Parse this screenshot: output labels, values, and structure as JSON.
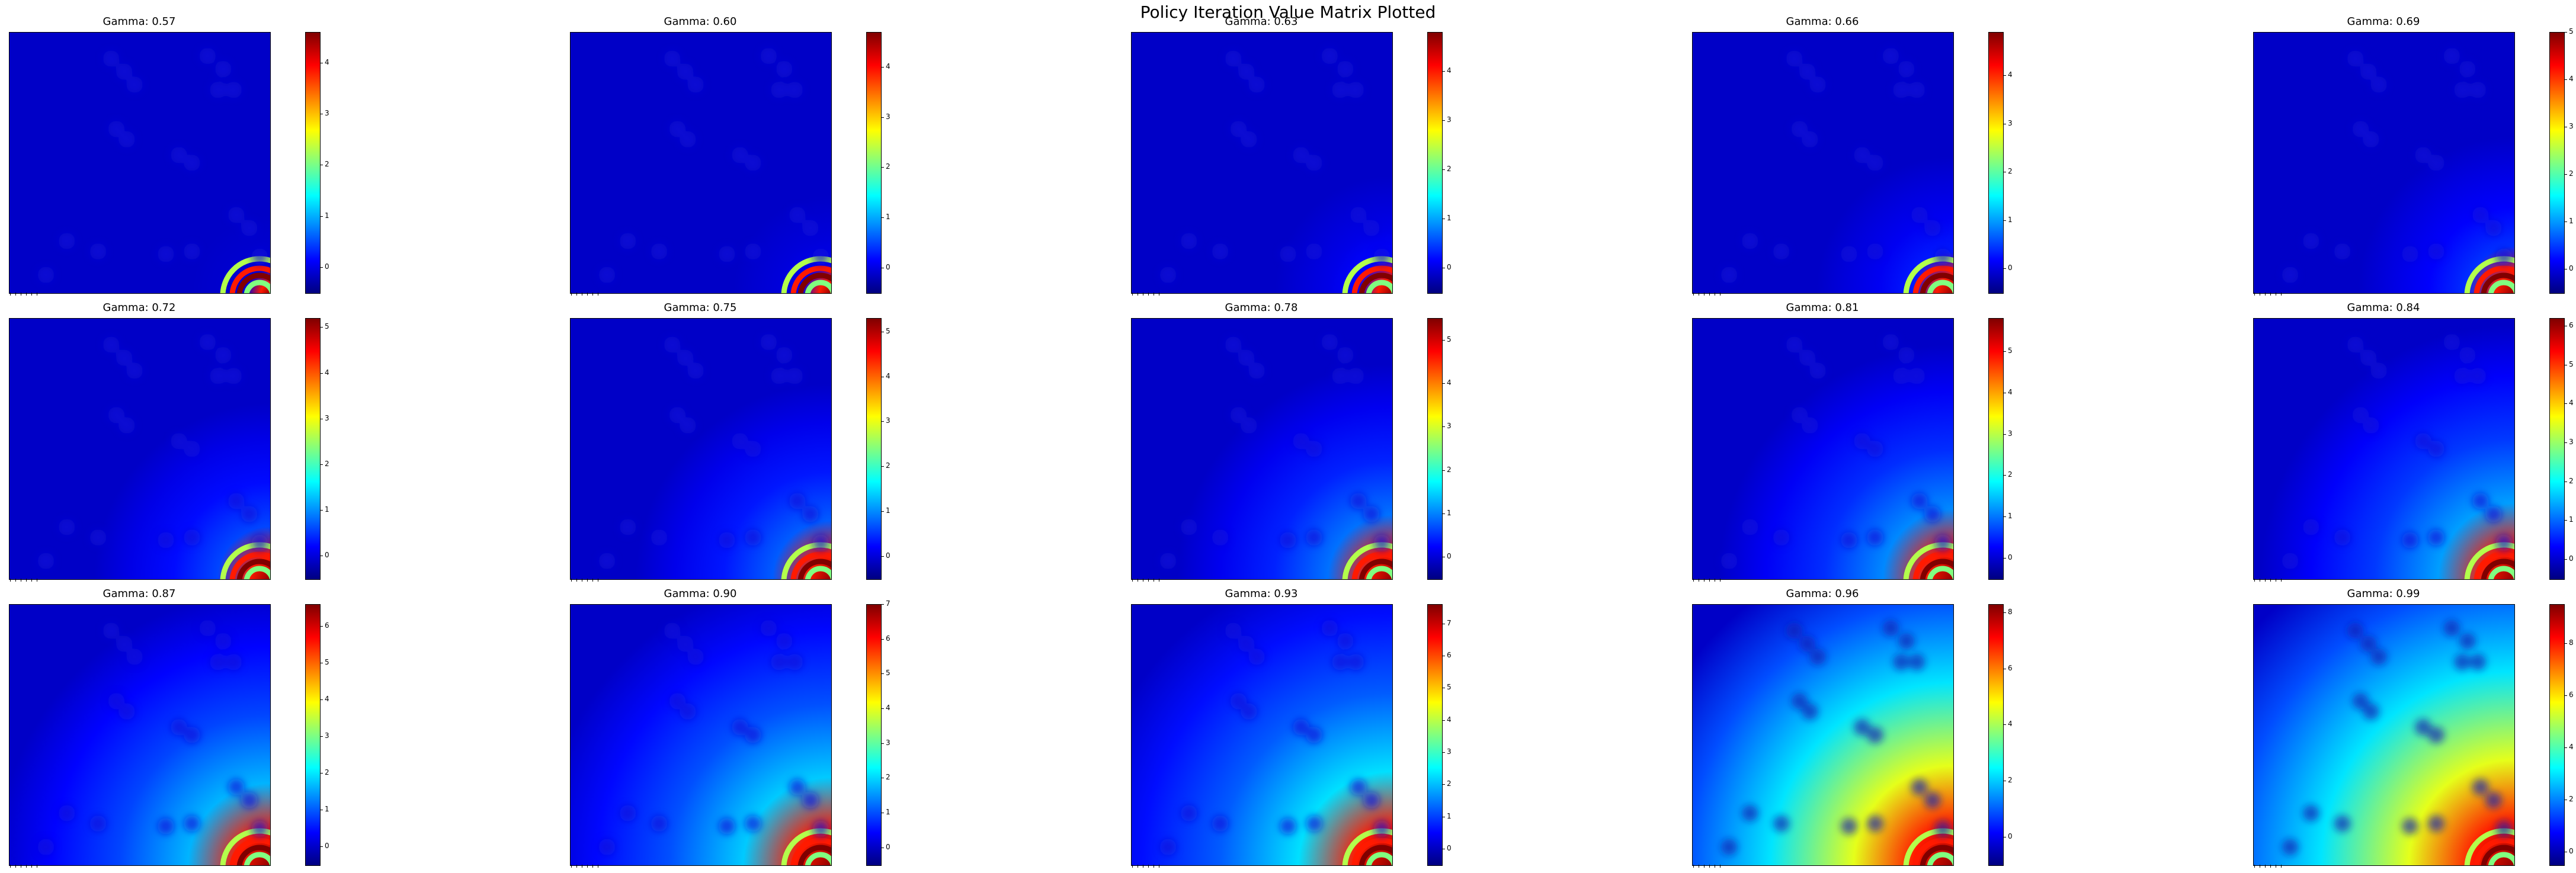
{
  "figure": {
    "suptitle": "Policy Iteration Value Matrix Plotted"
  },
  "chart_data": [
    {
      "type": "heatmap",
      "title": "Gamma: 0.57",
      "gamma": 0.57,
      "colormap": "jet",
      "colorbar": {
        "vmin": -0.5,
        "vmax": 4.6,
        "ticks": [
          0,
          1,
          2,
          3,
          4
        ]
      }
    },
    {
      "type": "heatmap",
      "title": "Gamma: 0.60",
      "gamma": 0.6,
      "colormap": "jet",
      "colorbar": {
        "vmin": -0.5,
        "vmax": 4.7,
        "ticks": [
          0,
          1,
          2,
          3,
          4
        ]
      }
    },
    {
      "type": "heatmap",
      "title": "Gamma: 0.63",
      "gamma": 0.63,
      "colormap": "jet",
      "colorbar": {
        "vmin": -0.5,
        "vmax": 4.8,
        "ticks": [
          0,
          1,
          2,
          3,
          4
        ]
      }
    },
    {
      "type": "heatmap",
      "title": "Gamma: 0.66",
      "gamma": 0.66,
      "colormap": "jet",
      "colorbar": {
        "vmin": -0.5,
        "vmax": 4.9,
        "ticks": [
          0,
          1,
          2,
          3,
          4
        ]
      }
    },
    {
      "type": "heatmap",
      "title": "Gamma: 0.69",
      "gamma": 0.69,
      "colormap": "jet",
      "colorbar": {
        "vmin": -0.5,
        "vmax": 5.0,
        "ticks": [
          0,
          1,
          2,
          3,
          4,
          5
        ]
      }
    },
    {
      "type": "heatmap",
      "title": "Gamma: 0.72",
      "gamma": 0.72,
      "colormap": "jet",
      "colorbar": {
        "vmin": -0.5,
        "vmax": 5.2,
        "ticks": [
          0,
          1,
          2,
          3,
          4,
          5
        ]
      }
    },
    {
      "type": "heatmap",
      "title": "Gamma: 0.75",
      "gamma": 0.75,
      "colormap": "jet",
      "colorbar": {
        "vmin": -0.5,
        "vmax": 5.3,
        "ticks": [
          0,
          1,
          2,
          3,
          4,
          5
        ]
      }
    },
    {
      "type": "heatmap",
      "title": "Gamma: 0.78",
      "gamma": 0.78,
      "colormap": "jet",
      "colorbar": {
        "vmin": -0.5,
        "vmax": 5.5,
        "ticks": [
          0,
          1,
          2,
          3,
          4,
          5
        ]
      }
    },
    {
      "type": "heatmap",
      "title": "Gamma: 0.81",
      "gamma": 0.81,
      "colormap": "jet",
      "colorbar": {
        "vmin": -0.5,
        "vmax": 5.8,
        "ticks": [
          0,
          1,
          2,
          3,
          4,
          5
        ]
      }
    },
    {
      "type": "heatmap",
      "title": "Gamma: 0.84",
      "gamma": 0.84,
      "colormap": "jet",
      "colorbar": {
        "vmin": -0.5,
        "vmax": 6.2,
        "ticks": [
          0,
          1,
          2,
          3,
          4,
          5,
          6
        ]
      }
    },
    {
      "type": "heatmap",
      "title": "Gamma: 0.87",
      "gamma": 0.87,
      "colormap": "jet",
      "colorbar": {
        "vmin": -0.5,
        "vmax": 6.6,
        "ticks": [
          0,
          1,
          2,
          3,
          4,
          5,
          6
        ]
      }
    },
    {
      "type": "heatmap",
      "title": "Gamma: 0.90",
      "gamma": 0.9,
      "colormap": "jet",
      "colorbar": {
        "vmin": -0.5,
        "vmax": 7.0,
        "ticks": [
          0,
          1,
          2,
          3,
          4,
          5,
          6,
          7
        ]
      }
    },
    {
      "type": "heatmap",
      "title": "Gamma: 0.93",
      "gamma": 0.93,
      "colormap": "jet",
      "colorbar": {
        "vmin": -0.5,
        "vmax": 7.6,
        "ticks": [
          0,
          1,
          2,
          3,
          4,
          5,
          6,
          7
        ]
      }
    },
    {
      "type": "heatmap",
      "title": "Gamma: 0.96",
      "gamma": 0.96,
      "colormap": "jet",
      "colorbar": {
        "vmin": -1.0,
        "vmax": 8.3,
        "ticks": [
          0,
          2,
          4,
          6,
          8
        ]
      }
    },
    {
      "type": "heatmap",
      "title": "Gamma: 0.99",
      "gamma": 0.99,
      "colormap": "jet",
      "colorbar": {
        "vmin": -0.5,
        "vmax": 9.5,
        "ticks": [
          0,
          2,
          4,
          6,
          8
        ]
      }
    }
  ]
}
